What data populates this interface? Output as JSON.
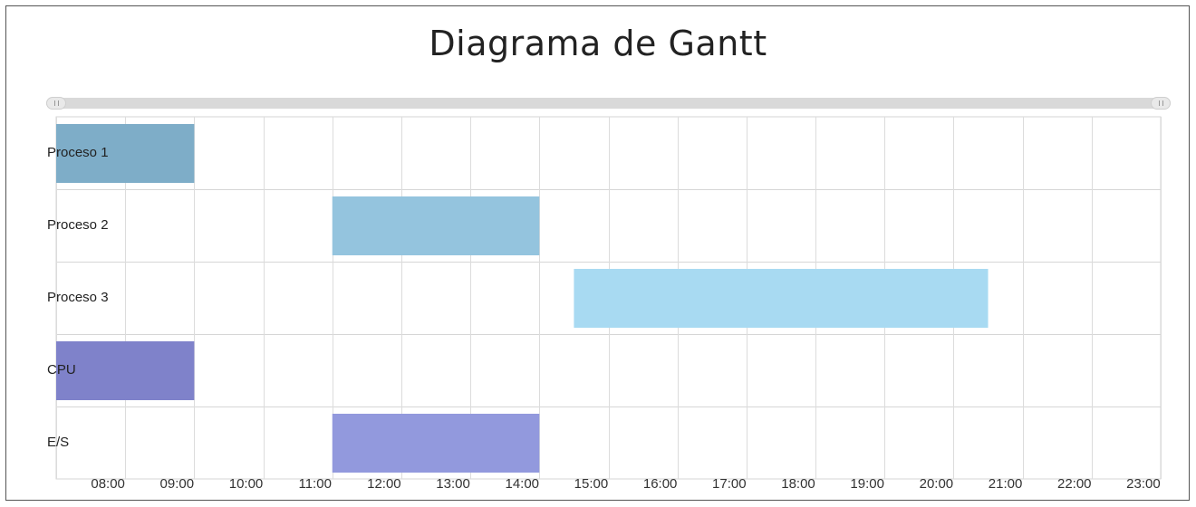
{
  "chart_data": {
    "type": "gantt",
    "title": "Diagrama de Gantt",
    "xlabel": "",
    "ylabel": "",
    "x_ticks": [
      "08:00",
      "09:00",
      "10:00",
      "11:00",
      "12:00",
      "13:00",
      "14:00",
      "15:00",
      "16:00",
      "17:00",
      "18:00",
      "19:00",
      "20:00",
      "21:00",
      "22:00",
      "23:00"
    ],
    "x_range": [
      "07:15",
      "23:15"
    ],
    "grid": true,
    "range_slider": true,
    "rows": [
      {
        "label": "Proceso 1",
        "start": "07:15",
        "end": "09:15",
        "color": "#7eadc8"
      },
      {
        "label": "Proceso 2",
        "start": "11:15",
        "end": "14:15",
        "color": "#94c4de"
      },
      {
        "label": "Proceso 3",
        "start": "14:45",
        "end": "20:45",
        "color": "#a8daf2"
      },
      {
        "label": "CPU",
        "start": "07:15",
        "end": "09:15",
        "color": "#7f82ca"
      },
      {
        "label": "E/S",
        "start": "11:15",
        "end": "14:15",
        "color": "#9299dd"
      }
    ]
  }
}
